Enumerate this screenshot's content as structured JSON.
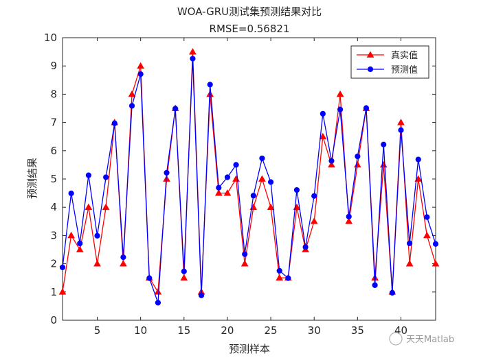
{
  "chart_data": {
    "type": "line",
    "title": "WOA-GRU测试集预测结果对比",
    "subtitle": "RMSE=0.56821",
    "xlabel": "预测样本",
    "ylabel": "预测结果",
    "xlim": [
      1,
      44
    ],
    "ylim": [
      0,
      10
    ],
    "xticks": [
      5,
      10,
      15,
      20,
      25,
      30,
      35,
      40
    ],
    "yticks": [
      0,
      1,
      2,
      3,
      4,
      5,
      6,
      7,
      8,
      9,
      10
    ],
    "grid": false,
    "legend_position": "top-right",
    "x": [
      1,
      2,
      3,
      4,
      5,
      6,
      7,
      8,
      9,
      10,
      11,
      12,
      13,
      14,
      15,
      16,
      17,
      18,
      19,
      20,
      21,
      22,
      23,
      24,
      25,
      26,
      27,
      28,
      29,
      30,
      31,
      32,
      33,
      34,
      35,
      36,
      37,
      38,
      39,
      40,
      41,
      42,
      43,
      44
    ],
    "series": [
      {
        "name": "真实值",
        "color": "#ff0000",
        "marker": "triangle",
        "values": [
          1,
          3,
          2.5,
          4,
          2,
          4,
          7,
          2,
          8,
          9,
          1.5,
          1,
          5,
          7.5,
          1.5,
          9.5,
          1,
          8,
          4.5,
          4.5,
          5,
          2,
          4,
          5,
          4,
          1.5,
          1.5,
          4,
          2.5,
          3.5,
          6.5,
          5.5,
          8,
          3.5,
          5.5,
          7.5,
          1.5,
          5.5,
          1,
          7,
          2,
          5,
          3,
          2
        ]
      },
      {
        "name": "预测值",
        "color": "#0000ff",
        "marker": "circle",
        "values": [
          1.87,
          4.49,
          2.72,
          5.13,
          2.99,
          5.06,
          6.97,
          2.23,
          7.59,
          8.71,
          1.49,
          0.62,
          5.22,
          7.49,
          1.73,
          9.26,
          0.88,
          8.34,
          4.69,
          5.06,
          5.5,
          2.34,
          4.41,
          5.73,
          4.89,
          1.75,
          1.49,
          4.61,
          2.59,
          4.4,
          7.31,
          5.64,
          7.46,
          3.67,
          5.8,
          7.51,
          1.24,
          6.22,
          0.97,
          6.73,
          2.72,
          5.69,
          3.65,
          2.7
        ]
      }
    ]
  },
  "watermark": "天天Matlab"
}
